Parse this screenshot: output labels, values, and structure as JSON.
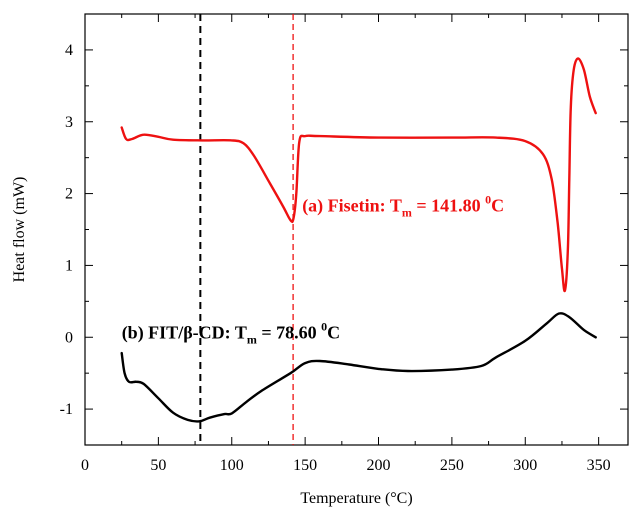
{
  "chart_data": {
    "type": "line",
    "title": "",
    "xlabel": "Temperature (°C)",
    "ylabel": "Heat flow (mW)",
    "xlim": [
      0,
      370
    ],
    "ylim": [
      -1.5,
      4.5
    ],
    "xticks": [
      0,
      50,
      100,
      150,
      200,
      250,
      300,
      350
    ],
    "yticks": [
      -1,
      0,
      1,
      2,
      3,
      4
    ],
    "grid": false,
    "series": [
      {
        "color": "#ee1111",
        "x": [
          25,
          28,
          32,
          40,
          50,
          60,
          80,
          100,
          108,
          115,
          125,
          135,
          140,
          142,
          144,
          146,
          150,
          160,
          200,
          250,
          280,
          300,
          312,
          318,
          322,
          325,
          327,
          329,
          330,
          331,
          333,
          336,
          340,
          344,
          348
        ],
        "y": [
          2.92,
          2.76,
          2.76,
          2.82,
          2.79,
          2.75,
          2.74,
          2.74,
          2.7,
          2.53,
          2.18,
          1.82,
          1.63,
          1.65,
          2.0,
          2.72,
          2.8,
          2.8,
          2.78,
          2.78,
          2.78,
          2.73,
          2.55,
          2.2,
          1.6,
          0.95,
          0.65,
          1.2,
          2.2,
          3.2,
          3.72,
          3.88,
          3.72,
          3.35,
          3.12
        ]
      },
      {
        "color": "#000000",
        "x": [
          25,
          27,
          30,
          35,
          40,
          50,
          60,
          70,
          78,
          85,
          95,
          100,
          110,
          120,
          140,
          150,
          160,
          180,
          200,
          220,
          250,
          270,
          280,
          300,
          315,
          323,
          330,
          340,
          348
        ],
        "y": [
          -0.22,
          -0.5,
          -0.62,
          -0.62,
          -0.65,
          -0.85,
          -1.05,
          -1.15,
          -1.17,
          -1.12,
          -1.07,
          -1.06,
          -0.9,
          -0.75,
          -0.5,
          -0.36,
          -0.33,
          -0.38,
          -0.44,
          -0.47,
          -0.45,
          -0.4,
          -0.28,
          -0.05,
          0.2,
          0.33,
          0.28,
          0.1,
          0.0
        ]
      }
    ],
    "reference_lines": [
      {
        "x": 78.6,
        "color": "#000000",
        "style": "dashed"
      },
      {
        "x": 141.8,
        "color": "#ee1111",
        "style": "dashed"
      }
    ],
    "annotations": [
      {
        "main": "(a) Fisetin: T",
        "sub": "m",
        "value": " = 141.80 ",
        "sup": "0",
        "unit": "C",
        "color": "#ee1111",
        "at_x": 148,
        "at_y": 1.75
      },
      {
        "main": "(b) FIT/β-CD: T",
        "sub": "m",
        "value": " = 78.60 ",
        "sup": "0",
        "unit": "C",
        "color": "#000000",
        "at_x": 25,
        "at_y": -0.02
      }
    ]
  }
}
